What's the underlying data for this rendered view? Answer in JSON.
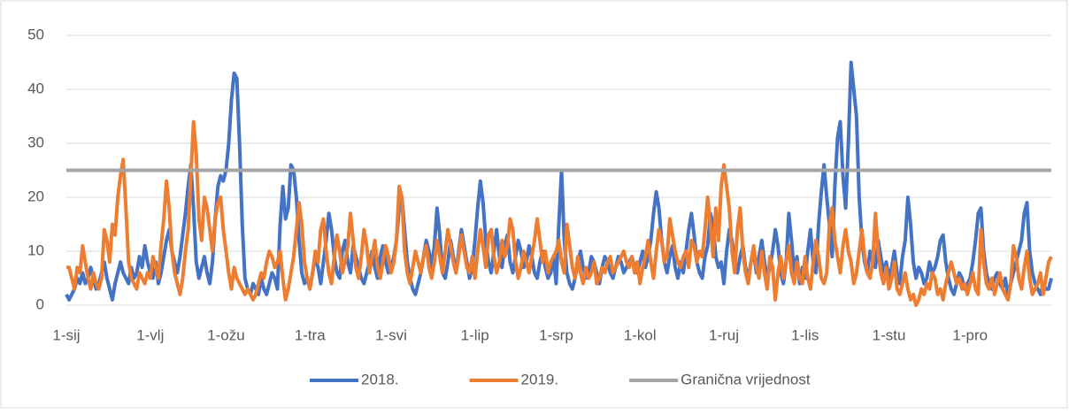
{
  "chart_data": {
    "type": "line",
    "categories": [
      "1-sij",
      null,
      null,
      null,
      null,
      null,
      null,
      null,
      null,
      null,
      null,
      null,
      null,
      null,
      null,
      null,
      null,
      null,
      null,
      null,
      null,
      null,
      null,
      null,
      null,
      null,
      null,
      null,
      null,
      null,
      null,
      "1-vlj",
      null,
      null,
      null,
      null,
      null,
      null,
      null,
      null,
      null,
      null,
      null,
      null,
      null,
      null,
      null,
      null,
      null,
      null,
      null,
      null,
      null,
      null,
      null,
      null,
      null,
      null,
      null,
      "1-ožu",
      null,
      null,
      null,
      null,
      null,
      null,
      null,
      null,
      null,
      null,
      null,
      null,
      null,
      null,
      null,
      null,
      null,
      null,
      null,
      null,
      null,
      null,
      null,
      null,
      null,
      null,
      null,
      null,
      null,
      null,
      "1-tra",
      null,
      null,
      null,
      null,
      null,
      null,
      null,
      null,
      null,
      null,
      null,
      null,
      null,
      null,
      null,
      null,
      null,
      null,
      null,
      null,
      null,
      null,
      null,
      null,
      null,
      null,
      null,
      null,
      null,
      "1-svi",
      null,
      null,
      null,
      null,
      null,
      null,
      null,
      null,
      null,
      null,
      null,
      null,
      null,
      null,
      null,
      null,
      null,
      null,
      null,
      null,
      null,
      null,
      null,
      null,
      null,
      null,
      null,
      null,
      null,
      null,
      "1-lip",
      null,
      null,
      null,
      null,
      null,
      null,
      null,
      null,
      null,
      null,
      null,
      null,
      null,
      null,
      null,
      null,
      null,
      null,
      null,
      null,
      null,
      null,
      null,
      null,
      null,
      null,
      null,
      null,
      null,
      "1-srp",
      null,
      null,
      null,
      null,
      null,
      null,
      null,
      null,
      null,
      null,
      null,
      null,
      null,
      null,
      null,
      null,
      null,
      null,
      null,
      null,
      null,
      null,
      null,
      null,
      null,
      null,
      null,
      null,
      null,
      null,
      "1-kol",
      null,
      null,
      null,
      null,
      null,
      null,
      null,
      null,
      null,
      null,
      null,
      null,
      null,
      null,
      null,
      null,
      null,
      null,
      null,
      null,
      null,
      null,
      null,
      null,
      null,
      null,
      null,
      null,
      null,
      null,
      "1-ruj",
      null,
      null,
      null,
      null,
      null,
      null,
      null,
      null,
      null,
      null,
      null,
      null,
      null,
      null,
      null,
      null,
      null,
      null,
      null,
      null,
      null,
      null,
      null,
      null,
      null,
      null,
      null,
      null,
      null,
      "1-lis",
      null,
      null,
      null,
      null,
      null,
      null,
      null,
      null,
      null,
      null,
      null,
      null,
      null,
      null,
      null,
      null,
      null,
      null,
      null,
      null,
      null,
      null,
      null,
      null,
      null,
      null,
      null,
      null,
      null,
      null,
      "1-stu",
      null,
      null,
      null,
      null,
      null,
      null,
      null,
      null,
      null,
      null,
      null,
      null,
      null,
      null,
      null,
      null,
      null,
      null,
      null,
      null,
      null,
      null,
      null,
      null,
      null,
      null,
      null,
      null,
      null,
      "1-pro",
      null,
      null,
      null,
      null,
      null,
      null,
      null,
      null,
      null,
      null,
      null,
      null,
      null,
      null,
      null,
      null,
      null,
      null,
      null,
      null,
      null,
      null,
      null,
      null,
      null,
      null,
      null,
      null,
      null,
      null
    ],
    "series": [
      {
        "name": "2018.",
        "color": "#4472c4",
        "values": [
          2,
          1,
          2,
          3,
          5,
          4,
          6,
          4,
          5,
          7,
          5,
          3,
          4,
          6,
          8,
          5,
          3,
          1,
          4,
          6,
          8,
          6,
          5,
          4,
          7,
          5,
          6,
          9,
          7,
          11,
          8,
          6,
          5,
          8,
          4,
          6,
          9,
          12,
          14,
          10,
          8,
          6,
          9,
          13,
          17,
          22,
          26,
          18,
          8,
          5,
          7,
          9,
          6,
          4,
          8,
          16,
          22,
          24,
          23,
          25,
          30,
          38,
          43,
          42,
          30,
          15,
          5,
          3,
          2,
          4,
          3,
          2,
          5,
          3,
          2,
          4,
          6,
          5,
          3,
          15,
          22,
          16,
          18,
          26,
          25,
          20,
          12,
          6,
          4,
          5,
          3,
          6,
          9,
          7,
          4,
          8,
          12,
          17,
          14,
          9,
          6,
          5,
          10,
          12,
          8,
          6,
          11,
          9,
          7,
          5,
          4,
          6,
          8,
          10,
          7,
          5,
          9,
          11,
          8,
          6,
          7,
          9,
          12,
          18,
          20,
          14,
          8,
          5,
          3,
          2,
          4,
          6,
          9,
          12,
          10,
          7,
          11,
          18,
          13,
          6,
          5,
          8,
          12,
          9,
          6,
          10,
          14,
          11,
          8,
          5,
          7,
          12,
          18,
          23,
          19,
          12,
          8,
          6,
          10,
          14,
          9,
          7,
          11,
          13,
          8,
          6,
          9,
          12,
          10,
          7,
          8,
          11,
          9,
          6,
          5,
          8,
          10,
          7,
          5,
          6,
          9,
          4,
          15,
          25,
          12,
          6,
          4,
          3,
          5,
          8,
          10,
          7,
          5,
          6,
          9,
          8,
          6,
          4,
          7,
          9,
          8,
          6,
          5,
          7,
          9,
          8,
          6,
          7,
          8,
          9,
          7,
          6,
          8,
          10,
          7,
          9,
          12,
          17,
          21,
          18,
          12,
          8,
          6,
          9,
          11,
          7,
          5,
          8,
          6,
          10,
          14,
          17,
          13,
          8,
          6,
          5,
          9,
          11,
          17,
          15,
          9,
          7,
          8,
          4,
          10,
          14,
          12,
          8,
          6,
          9,
          11,
          7,
          5,
          8,
          10,
          6,
          9,
          12,
          8,
          5,
          7,
          10,
          14,
          11,
          6,
          4,
          8,
          17,
          12,
          6,
          9,
          4,
          7,
          5,
          10,
          14,
          8,
          6,
          15,
          21,
          26,
          20,
          15,
          9,
          22,
          31,
          34,
          24,
          18,
          30,
          45,
          40,
          35,
          20,
          12,
          8,
          6,
          10,
          8,
          7,
          12,
          9,
          6,
          8,
          5,
          7,
          10,
          6,
          4,
          9,
          12,
          20,
          15,
          8,
          5,
          7,
          6,
          4,
          5,
          8,
          6,
          7,
          9,
          12,
          13,
          8,
          5,
          3,
          2,
          4,
          6,
          5,
          3,
          4,
          5,
          8,
          12,
          17,
          18,
          10,
          6,
          4,
          3,
          5,
          6,
          4,
          3,
          5,
          2,
          4,
          6,
          8,
          10,
          12,
          17,
          19,
          10,
          6,
          4,
          3,
          2,
          4,
          3,
          3,
          5
        ]
      },
      {
        "name": "2019.",
        "color": "#ed7d31",
        "values": [
          7,
          7,
          5,
          3,
          7,
          6,
          11,
          8,
          5,
          3,
          6,
          4,
          3,
          5,
          14,
          12,
          8,
          15,
          13,
          20,
          24,
          27,
          18,
          8,
          5,
          4,
          3,
          6,
          5,
          4,
          6,
          5,
          9,
          7,
          5,
          11,
          16,
          23,
          18,
          10,
          6,
          4,
          2,
          5,
          10,
          14,
          24,
          34,
          28,
          16,
          12,
          20,
          18,
          14,
          10,
          16,
          19,
          20,
          14,
          10,
          6,
          3,
          7,
          5,
          4,
          3,
          2,
          3,
          2,
          1,
          2,
          4,
          6,
          5,
          8,
          10,
          9,
          7,
          8,
          10,
          5,
          1,
          3,
          6,
          9,
          14,
          19,
          15,
          8,
          5,
          3,
          6,
          10,
          8,
          14,
          16,
          10,
          6,
          4,
          9,
          13,
          10,
          6,
          8,
          11,
          17,
          12,
          7,
          5,
          9,
          14,
          11,
          6,
          9,
          12,
          7,
          5,
          8,
          11,
          9,
          6,
          8,
          12,
          22,
          20,
          10,
          6,
          4,
          7,
          10,
          8,
          6,
          9,
          11,
          7,
          5,
          8,
          12,
          9,
          6,
          10,
          14,
          11,
          8,
          6,
          9,
          13,
          10,
          7,
          6,
          9,
          5,
          10,
          14,
          11,
          7,
          13,
          14,
          9,
          6,
          8,
          12,
          9,
          11,
          16,
          14,
          8,
          5,
          7,
          10,
          8,
          6,
          9,
          12,
          16,
          12,
          8,
          10,
          6,
          8,
          9,
          10,
          12,
          8,
          6,
          15,
          11,
          7,
          5,
          9,
          6,
          4,
          7,
          5,
          6,
          8,
          4,
          5,
          7,
          6,
          8,
          9,
          6,
          7,
          8,
          9,
          10,
          8,
          7,
          9,
          6,
          8,
          4,
          7,
          9,
          12,
          8,
          5,
          10,
          14,
          12,
          8,
          9,
          16,
          13,
          10,
          8,
          7,
          9,
          10,
          7,
          12,
          11,
          8,
          10,
          9,
          14,
          20,
          15,
          9,
          18,
          12,
          22,
          26,
          22,
          18,
          10,
          6,
          14,
          18,
          10,
          6,
          4,
          8,
          11,
          7,
          5,
          10,
          6,
          3,
          9,
          7,
          1,
          6,
          9,
          5,
          8,
          11,
          6,
          4,
          8,
          5,
          4,
          9,
          5,
          3,
          8,
          12,
          9,
          5,
          4,
          6,
          15,
          18,
          12,
          9,
          6,
          11,
          14,
          10,
          8,
          4,
          6,
          10,
          14,
          9,
          6,
          5,
          8,
          17,
          10,
          6,
          4,
          7,
          3,
          5,
          8,
          3,
          2,
          4,
          6,
          3,
          1,
          2,
          0,
          1,
          3,
          2,
          4,
          3,
          6,
          5,
          2,
          3,
          1,
          4,
          6,
          8,
          6,
          4,
          5,
          3,
          4,
          2,
          4,
          6,
          3,
          2,
          14,
          8,
          4,
          3,
          5,
          2,
          4,
          6,
          3,
          2,
          1,
          4,
          11,
          9,
          5,
          3,
          7,
          10,
          5,
          2,
          3,
          4,
          6,
          2,
          5,
          8,
          9
        ]
      }
    ],
    "threshold": {
      "name": "Granična vrijednost",
      "value": 25,
      "color": "#a5a5a5"
    },
    "ylim": [
      0,
      50
    ],
    "yticks": [
      0,
      10,
      20,
      30,
      40,
      50
    ],
    "grid": true,
    "legend": "bottom"
  }
}
